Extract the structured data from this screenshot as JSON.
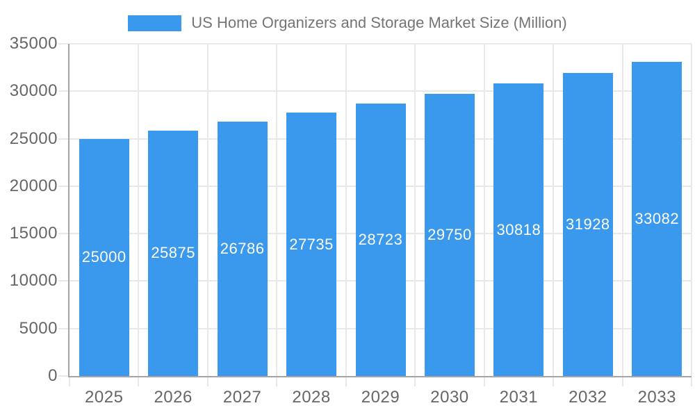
{
  "chart_data": {
    "type": "bar",
    "title": "US Home Organizers and Storage Market Size (Million)",
    "legend": {
      "position": "top",
      "entries": [
        "US Home Organizers and Storage Market Size (Million)"
      ]
    },
    "categories": [
      "2025",
      "2026",
      "2027",
      "2028",
      "2029",
      "2030",
      "2031",
      "2032",
      "2033"
    ],
    "values": [
      25000,
      25875,
      26786,
      27735,
      28723,
      29750,
      30818,
      31928,
      33082
    ],
    "xlabel": "",
    "ylabel": "",
    "ylim": [
      0,
      35000
    ],
    "ytick_interval": 5000,
    "ytick_labels": [
      "0",
      "5000",
      "10000",
      "15000",
      "20000",
      "25000",
      "30000",
      "35000"
    ],
    "grid": true,
    "bar_color": "#3A99EC",
    "bar_label_color": "#FFFFFF",
    "grid_color": "#E8E8E8",
    "axis_line_color": "#A5A5A5",
    "axis_text_color": "#666666",
    "legend_text_color": "#757575"
  }
}
